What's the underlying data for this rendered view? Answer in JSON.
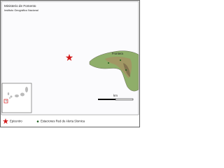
{
  "header": {
    "title": "Ministerio de Fomento",
    "subtitle": "Instituto Geográfico Nacional"
  },
  "map": {
    "place_labels": [
      "Frontera"
    ]
  },
  "scale": {
    "unit": "km"
  },
  "legend": {
    "items": [
      "Epicentro",
      "Estaciones Red de Alerta Sísmica"
    ]
  }
}
